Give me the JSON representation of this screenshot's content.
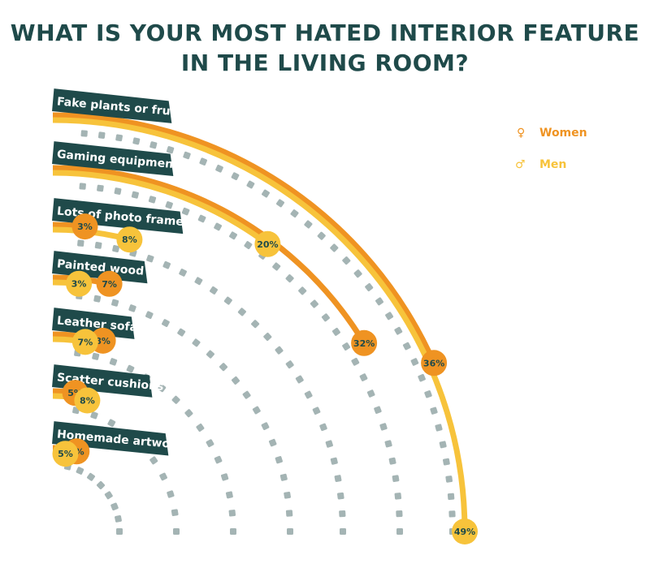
{
  "title": {
    "line1": "WHAT IS YOUR MOST HATED INTERIOR FEATURE",
    "line2": "IN THE LIVING ROOM?"
  },
  "legend": [
    {
      "label": "Women",
      "color": "#ef9322",
      "symbol": "♀"
    },
    {
      "label": "Men",
      "color": "#f7c33b",
      "symbol": "♂"
    }
  ],
  "colors": {
    "label_bg": "#1f4a4a",
    "icon": "#a4b4b4",
    "women": "#ef9322",
    "men": "#f7c33b"
  },
  "chart_data": {
    "type": "radial-bar",
    "categories": [
      "Fake plants or fruit",
      "Gaming equipment",
      "Lots of photo frames",
      "Painted wood",
      "Leather sofa",
      "Scatter cushions",
      "Homemade artwork"
    ],
    "series": [
      {
        "name": "Women",
        "values": [
          36,
          32,
          3,
          7,
          8,
          5,
          9
        ]
      },
      {
        "name": "Men",
        "values": [
          49,
          20,
          8,
          3,
          7,
          8,
          5
        ]
      }
    ],
    "value_labels": {
      "Women": [
        "36%",
        "32%",
        "3%",
        "7%",
        "8%",
        "5%",
        "9%"
      ],
      "Men": [
        "49%",
        "20%",
        "8%",
        "3%",
        "7%",
        "8%",
        "5%"
      ]
    },
    "scale_max": 49,
    "legend_position": "top-right",
    "icons": [
      "plant-icon",
      "gamepad-icon",
      "photo-frame-icon",
      "wood-plank-icon",
      "sofa-icon",
      "cushion-icon",
      "artwork-icon"
    ]
  }
}
